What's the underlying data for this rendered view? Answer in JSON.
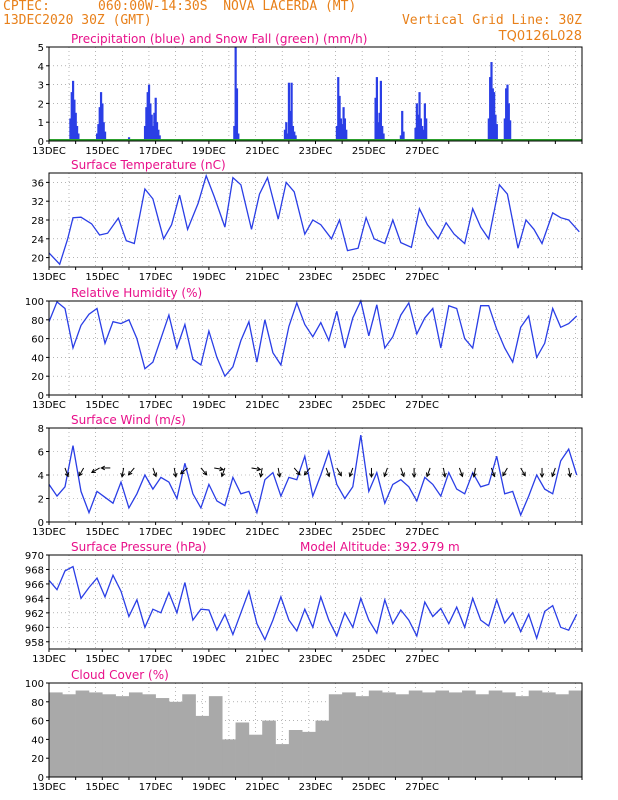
{
  "header": {
    "source": "CPTEC:",
    "location": "060:00W-14:30S  NOVA LACERDA (MT)",
    "run": "13DEC2020 30Z (GMT)",
    "grid_note": "Vertical Grid Line: 30Z",
    "code": "TQ0126L028"
  },
  "colors": {
    "header": "#e8801a",
    "panel_title": "#e8108a",
    "line": "#2a3ee6",
    "precip": "#2a3ee6",
    "snow": "#2ca02c",
    "cloud": "#a9a9a9",
    "arrow": "#000000",
    "grid": "#888888"
  },
  "chart_data": [
    {
      "id": "precip",
      "type": "bar",
      "title": "Precipitation (blue) and Snow Fall (green) (mm/h)",
      "xticks": [
        "13DEC",
        "15DEC",
        "17DEC",
        "19DEC",
        "21DEC",
        "23DEC",
        "25DEC",
        "27DEC"
      ],
      "ylim": [
        0,
        5
      ],
      "yticks": [
        0,
        1,
        2,
        3,
        4,
        5
      ],
      "grid": true,
      "series": [
        {
          "name": "Precipitation",
          "color": "#2a3ee6",
          "x": [
            0.8,
            0.85,
            0.9,
            0.95,
            1.0,
            1.05,
            1.1,
            1.8,
            1.85,
            1.9,
            1.95,
            2.0,
            2.05,
            2.1,
            3.0,
            3.6,
            3.65,
            3.7,
            3.75,
            3.8,
            3.85,
            3.9,
            3.95,
            4.0,
            4.05,
            4.1,
            4.15,
            6.95,
            7.0,
            7.05,
            7.1,
            8.85,
            8.9,
            8.95,
            9.0,
            9.05,
            9.1,
            9.15,
            9.2,
            9.25,
            9.3,
            10.8,
            10.85,
            10.9,
            10.95,
            11.0,
            11.05,
            11.1,
            11.15,
            12.25,
            12.3,
            12.35,
            12.4,
            12.45,
            12.5,
            12.55,
            13.2,
            13.25,
            13.3,
            13.75,
            13.8,
            13.85,
            13.9,
            13.95,
            14.0,
            14.05,
            14.1,
            14.15,
            16.5,
            16.55,
            16.6,
            16.65,
            16.7,
            16.75,
            16.8,
            17.1,
            17.15,
            17.2,
            17.25,
            17.3
          ],
          "values": [
            1.2,
            2.6,
            3.2,
            2.2,
            1.5,
            0.8,
            0.4,
            0.4,
            0.9,
            1.8,
            2.6,
            2.0,
            1.0,
            0.5,
            0.2,
            0.8,
            1.8,
            2.6,
            3.0,
            2.0,
            1.4,
            0.8,
            1.5,
            2.3,
            1.0,
            0.6,
            0.3,
            0.8,
            5.0,
            2.8,
            0.4,
            0.6,
            1.0,
            0.4,
            3.1,
            1.6,
            3.1,
            0.8,
            0.5,
            0.3,
            0.1,
            0.8,
            3.4,
            2.4,
            1.2,
            0.9,
            1.8,
            1.2,
            0.6,
            2.3,
            3.4,
            1.0,
            1.5,
            3.2,
            0.8,
            0.4,
            0.3,
            1.6,
            0.5,
            0.7,
            2.0,
            1.4,
            2.6,
            1.2,
            0.8,
            0.6,
            2.0,
            1.2,
            1.2,
            3.4,
            4.2,
            2.8,
            2.6,
            1.4,
            0.9,
            1.2,
            2.8,
            3.0,
            2.0,
            1.1
          ]
        },
        {
          "name": "Snow Fall",
          "color": "#2ca02c",
          "values": [
            0
          ]
        }
      ]
    },
    {
      "id": "temp",
      "type": "line",
      "title": "Surface Temperature (nC)",
      "xticks": [
        "13DEC",
        "15DEC",
        "17DEC",
        "19DEC",
        "21DEC",
        "23DEC",
        "25DEC",
        "27DEC"
      ],
      "ylim": [
        18,
        38
      ],
      "yticks": [
        20,
        24,
        28,
        32,
        36
      ],
      "grid": true,
      "x": [
        0.0,
        0.4,
        0.7,
        0.9,
        1.2,
        1.6,
        1.9,
        2.2,
        2.6,
        2.9,
        3.2,
        3.6,
        3.9,
        4.3,
        4.6,
        4.9,
        5.2,
        5.6,
        5.9,
        6.2,
        6.6,
        6.9,
        7.2,
        7.6,
        7.9,
        8.2,
        8.6,
        8.9,
        9.2,
        9.6,
        9.9,
        10.2,
        10.6,
        10.9,
        11.2,
        11.6,
        11.9,
        12.2,
        12.6,
        12.9,
        13.2,
        13.6,
        13.9,
        14.2,
        14.6,
        14.9,
        15.2,
        15.6,
        15.9,
        16.2,
        16.5,
        16.9,
        17.2,
        17.6,
        17.9,
        18.2,
        18.5,
        18.9,
        19.2,
        19.5,
        19.9
      ],
      "y": [
        21.0,
        18.6,
        24.0,
        28.5,
        28.6,
        27.2,
        24.8,
        25.2,
        28.4,
        23.6,
        23.0,
        34.6,
        32.5,
        24.0,
        27.0,
        33.3,
        26.0,
        31.6,
        37.4,
        33.0,
        26.5,
        37.0,
        35.5,
        26.0,
        33.5,
        37.0,
        28.2,
        36.0,
        34.0,
        25.0,
        28.0,
        27.0,
        24.0,
        28.0,
        21.5,
        22.0,
        28.5,
        24.0,
        23.0,
        28.0,
        23.2,
        22.2,
        30.4,
        27.0,
        24.0,
        27.4,
        25.0,
        23.0,
        30.4,
        26.5,
        24.0,
        35.5,
        33.5,
        22.0,
        28.0,
        26.0,
        23.0,
        29.5,
        28.5,
        28.0,
        25.5
      ]
    },
    {
      "id": "rh",
      "type": "line",
      "title": "Relative Humidity (%)",
      "xticks": [
        "13DEC",
        "15DEC",
        "17DEC",
        "19DEC",
        "21DEC",
        "23DEC",
        "25DEC",
        "27DEC"
      ],
      "ylim": [
        0,
        100
      ],
      "yticks": [
        0,
        20,
        40,
        60,
        80,
        100
      ],
      "grid": true,
      "x": [
        0.0,
        0.3,
        0.6,
        0.9,
        1.2,
        1.5,
        1.8,
        2.1,
        2.4,
        2.7,
        3.0,
        3.3,
        3.6,
        3.9,
        4.2,
        4.5,
        4.8,
        5.1,
        5.4,
        5.7,
        6.0,
        6.3,
        6.6,
        6.9,
        7.2,
        7.5,
        7.8,
        8.1,
        8.4,
        8.7,
        9.0,
        9.3,
        9.6,
        9.9,
        10.2,
        10.5,
        10.8,
        11.1,
        11.4,
        11.7,
        12.0,
        12.3,
        12.6,
        12.9,
        13.2,
        13.5,
        13.8,
        14.1,
        14.4,
        14.7,
        15.0,
        15.3,
        15.6,
        15.9,
        16.2,
        16.5,
        16.8,
        17.1,
        17.4,
        17.7,
        18.0,
        18.3,
        18.6,
        18.9,
        19.2,
        19.5,
        19.8
      ],
      "y": [
        78,
        99,
        92,
        50,
        74,
        86,
        92,
        55,
        78,
        76,
        80,
        60,
        28,
        35,
        60,
        85,
        50,
        75,
        38,
        32,
        68,
        40,
        20,
        30,
        58,
        78,
        35,
        80,
        45,
        32,
        73,
        98,
        75,
        62,
        77,
        58,
        89,
        50,
        82,
        100,
        63,
        96,
        50,
        62,
        85,
        98,
        65,
        82,
        92,
        50,
        95,
        92,
        60,
        50,
        95,
        95,
        70,
        50,
        35,
        72,
        84,
        40,
        55,
        92,
        72,
        76,
        84
      ]
    },
    {
      "id": "wind",
      "type": "line",
      "title": "Surface Wind (m/s)",
      "xticks": [
        "13DEC",
        "15DEC",
        "17DEC",
        "19DEC",
        "21DEC",
        "23DEC",
        "25DEC",
        "27DEC"
      ],
      "ylim": [
        0,
        8
      ],
      "yticks": [
        0,
        2,
        4,
        6,
        8
      ],
      "grid": true,
      "x": [
        0.0,
        0.3,
        0.6,
        0.9,
        1.2,
        1.5,
        1.8,
        2.1,
        2.4,
        2.7,
        3.0,
        3.3,
        3.6,
        3.9,
        4.2,
        4.5,
        4.8,
        5.1,
        5.4,
        5.7,
        6.0,
        6.3,
        6.6,
        6.9,
        7.2,
        7.5,
        7.8,
        8.1,
        8.4,
        8.7,
        9.0,
        9.3,
        9.6,
        9.9,
        10.2,
        10.5,
        10.8,
        11.1,
        11.4,
        11.7,
        12.0,
        12.3,
        12.6,
        12.9,
        13.2,
        13.5,
        13.8,
        14.1,
        14.4,
        14.7,
        15.0,
        15.3,
        15.6,
        15.9,
        16.2,
        16.5,
        16.8,
        17.1,
        17.4,
        17.7,
        18.0,
        18.3,
        18.6,
        18.9,
        19.2,
        19.5,
        19.8
      ],
      "y": [
        3.2,
        2.2,
        3.0,
        6.5,
        2.6,
        0.8,
        2.6,
        2.1,
        1.6,
        3.4,
        1.2,
        2.4,
        4.0,
        2.8,
        3.8,
        3.4,
        2.0,
        5.0,
        2.4,
        1.2,
        3.2,
        1.8,
        1.4,
        3.8,
        2.4,
        2.6,
        0.8,
        3.6,
        4.2,
        2.2,
        3.8,
        3.6,
        5.6,
        2.2,
        4.0,
        6.0,
        3.2,
        2.0,
        3.0,
        7.4,
        2.6,
        4.2,
        1.6,
        3.2,
        3.6,
        3.0,
        1.8,
        3.8,
        3.2,
        2.2,
        4.2,
        2.8,
        2.4,
        4.2,
        3.0,
        3.2,
        5.6,
        2.4,
        2.6,
        0.6,
        2.2,
        4.0,
        2.8,
        2.4,
        5.2,
        6.2,
        4.0
      ],
      "arrows": {
        "x": [
          0.6,
          1.3,
          1.9,
          2.3,
          2.8,
          3.2,
          3.9,
          4.7,
          5.2,
          5.7,
          6.2,
          6.6,
          7.6,
          8.0,
          8.6,
          9.2,
          9.8,
          10.4,
          10.8,
          11.4,
          12.1,
          12.7,
          13.2,
          13.7,
          14.3,
          14.8,
          15.4,
          16.0,
          16.6,
          17.2,
          17.7,
          18.5,
          19.0,
          19.5
        ],
        "dir_deg": [
          160,
          210,
          240,
          270,
          190,
          220,
          160,
          170,
          230,
          140,
          100,
          200,
          100,
          190,
          170,
          140,
          220,
          160,
          150,
          200,
          180,
          200,
          160,
          180,
          200,
          170,
          160,
          190,
          160,
          210,
          150,
          180,
          200,
          170
        ]
      }
    },
    {
      "id": "pressure",
      "type": "line",
      "title": "Surface Pressure (hPa)",
      "annotation": "Model Altitude: 392.979  m",
      "xticks": [
        "13DEC",
        "15DEC",
        "17DEC",
        "19DEC",
        "21DEC",
        "23DEC",
        "25DEC",
        "27DEC"
      ],
      "ylim": [
        957,
        970
      ],
      "yticks": [
        958,
        960,
        962,
        964,
        966,
        968,
        970
      ],
      "grid": true,
      "x": [
        0.0,
        0.3,
        0.6,
        0.9,
        1.2,
        1.5,
        1.8,
        2.1,
        2.4,
        2.7,
        3.0,
        3.3,
        3.6,
        3.9,
        4.2,
        4.5,
        4.8,
        5.1,
        5.4,
        5.7,
        6.0,
        6.3,
        6.6,
        6.9,
        7.2,
        7.5,
        7.8,
        8.1,
        8.4,
        8.7,
        9.0,
        9.3,
        9.6,
        9.9,
        10.2,
        10.5,
        10.8,
        11.1,
        11.4,
        11.7,
        12.0,
        12.3,
        12.6,
        12.9,
        13.2,
        13.5,
        13.8,
        14.1,
        14.4,
        14.7,
        15.0,
        15.3,
        15.6,
        15.9,
        16.2,
        16.5,
        16.8,
        17.1,
        17.4,
        17.7,
        18.0,
        18.3,
        18.6,
        18.9,
        19.2,
        19.5,
        19.8
      ],
      "y": [
        966.5,
        965.2,
        967.8,
        968.4,
        964.0,
        965.5,
        966.8,
        964.2,
        967.2,
        965.0,
        961.5,
        963.8,
        960.0,
        962.5,
        962.0,
        964.8,
        962.0,
        966.2,
        961.0,
        962.5,
        962.4,
        959.6,
        961.8,
        959.0,
        962.0,
        965.0,
        960.5,
        958.3,
        961.0,
        964.2,
        961.0,
        959.5,
        962.5,
        960.0,
        964.2,
        961.0,
        958.8,
        962.0,
        960.0,
        964.0,
        961.0,
        959.2,
        963.8,
        960.5,
        962.4,
        961.0,
        958.8,
        963.5,
        961.5,
        962.6,
        960.5,
        962.8,
        960.0,
        964.0,
        961.0,
        960.2,
        963.8,
        960.6,
        962.0,
        959.4,
        961.8,
        958.5,
        962.2,
        963.0,
        960.0,
        959.6,
        961.8
      ]
    },
    {
      "id": "cloud",
      "type": "bar",
      "title": "Cloud Cover (%)",
      "xticks": [
        "13DEC",
        "15DEC",
        "17DEC",
        "19DEC",
        "21DEC",
        "23DEC",
        "25DEC",
        "27DEC"
      ],
      "ylim": [
        0,
        100
      ],
      "yticks": [
        0,
        20,
        40,
        60,
        80,
        100
      ],
      "grid": true,
      "x": [
        0.0,
        0.5,
        1.0,
        1.5,
        2.0,
        2.5,
        3.0,
        3.5,
        4.0,
        4.5,
        5.0,
        5.5,
        6.0,
        6.5,
        7.0,
        7.5,
        8.0,
        8.5,
        9.0,
        9.5,
        10.0,
        10.5,
        11.0,
        11.5,
        12.0,
        12.5,
        13.0,
        13.5,
        14.0,
        14.5,
        15.0,
        15.5,
        16.0,
        16.5,
        17.0,
        17.5,
        18.0,
        18.5,
        19.0,
        19.5
      ],
      "values": [
        90,
        88,
        92,
        90,
        88,
        86,
        90,
        88,
        84,
        80,
        88,
        65,
        86,
        40,
        58,
        45,
        60,
        35,
        50,
        48,
        60,
        88,
        90,
        86,
        92,
        90,
        88,
        92,
        90,
        92,
        90,
        92,
        88,
        92,
        90,
        86,
        92,
        90,
        88,
        92
      ]
    }
  ]
}
